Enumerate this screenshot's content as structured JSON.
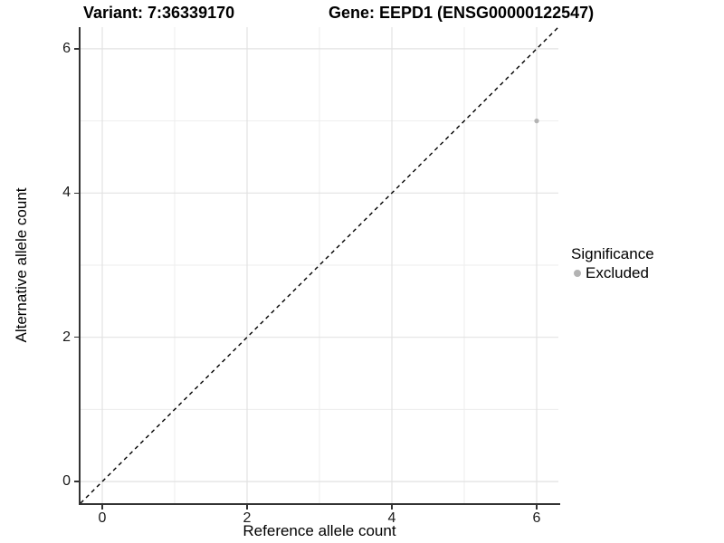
{
  "titles": {
    "variant": "Variant: 7:36339170",
    "gene": "Gene: EEPD1 (ENSG00000122547)"
  },
  "legend": {
    "title": "Significance",
    "items": [
      {
        "label": "Excluded",
        "color": "#b3b3b3"
      }
    ]
  },
  "chart_data": {
    "type": "scatter",
    "title_left": "Variant: 7:36339170",
    "title_right": "Gene: EEPD1 (ENSG00000122547)",
    "xlabel": "Reference allele count",
    "ylabel": "Alternative allele count",
    "xlim": [
      -0.3,
      6.3
    ],
    "ylim": [
      -0.3,
      6.3
    ],
    "x_major_ticks": [
      0,
      2,
      4,
      6
    ],
    "y_major_ticks": [
      0,
      2,
      4,
      6
    ],
    "x_minor_gridlines": [
      1,
      3,
      5
    ],
    "y_minor_gridlines": [
      1,
      3,
      5
    ],
    "grid": "on",
    "legend_position": "right",
    "series": [
      {
        "name": "Excluded",
        "color": "#b3b3b3",
        "points": [
          {
            "x": 6,
            "y": 5
          }
        ]
      }
    ],
    "reference_line": {
      "kind": "identity",
      "slope": 1,
      "intercept": 0,
      "style": "dashed",
      "color": "#000000"
    }
  },
  "style": {
    "background": "#ffffff",
    "grid_major_color": "#e2e2e2",
    "grid_minor_color": "#ededed",
    "axis_color": "#333333",
    "text_color": "#000000",
    "point_color": "#b3b3b3"
  }
}
